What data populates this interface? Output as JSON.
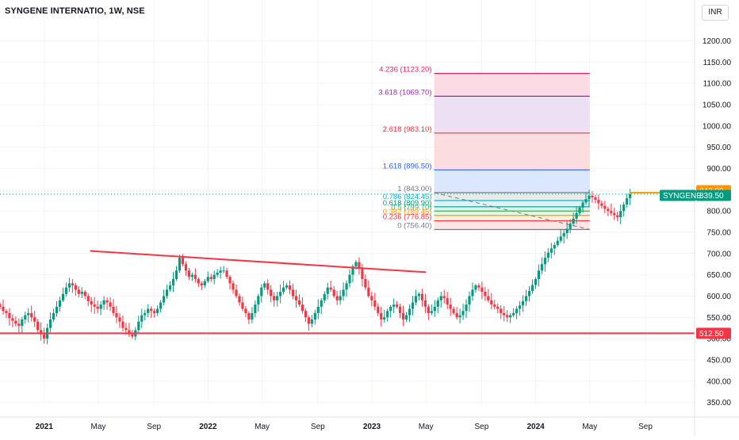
{
  "header": {
    "title": "SYNGENE INTERNATIO, 1W, NSE"
  },
  "currency_button": {
    "label": "INR"
  },
  "chart_data": {
    "type": "candlestick",
    "symbol": "SYNGENE",
    "interval": "1W",
    "exchange": "NSE",
    "currency": "INR",
    "y_axis": {
      "ticks": [
        350,
        400,
        450,
        500,
        550,
        600,
        650,
        700,
        750,
        800,
        850,
        900,
        950,
        1000,
        1050,
        1100,
        1150,
        1200
      ],
      "tick_labels": [
        "350.00",
        "400.00",
        "450.00",
        "500.00",
        "550.00",
        "600.00",
        "650.00",
        "700.00",
        "750.00",
        "800.00",
        "850.00",
        "900.00",
        "950.00",
        "1000.00",
        "1050.00",
        "1100.00",
        "1150.00",
        "1200.00"
      ],
      "range": [
        340,
        1225
      ]
    },
    "x_axis": {
      "tick_labels": [
        {
          "label": "2021",
          "bold": true,
          "t": 2021.0
        },
        {
          "label": "May",
          "bold": false,
          "t": 2021.33
        },
        {
          "label": "Sep",
          "bold": false,
          "t": 2021.67
        },
        {
          "label": "2022",
          "bold": true,
          "t": 2022.0
        },
        {
          "label": "May",
          "bold": false,
          "t": 2022.33
        },
        {
          "label": "Sep",
          "bold": false,
          "t": 2022.67
        },
        {
          "label": "2023",
          "bold": true,
          "t": 2023.0
        },
        {
          "label": "May",
          "bold": false,
          "t": 2023.33
        },
        {
          "label": "Sep",
          "bold": false,
          "t": 2023.67
        },
        {
          "label": "2024",
          "bold": true,
          "t": 2024.0
        },
        {
          "label": "May",
          "bold": false,
          "t": 2024.33
        },
        {
          "label": "Sep",
          "bold": false,
          "t": 2024.67
        }
      ],
      "range": [
        2020.73,
        2024.97
      ]
    },
    "closes": [
      575,
      565,
      560,
      548,
      542,
      535,
      530,
      545,
      555,
      560,
      550,
      540,
      520,
      510,
      500,
      525,
      545,
      560,
      575,
      590,
      605,
      620,
      630,
      625,
      615,
      605,
      610,
      600,
      588,
      580,
      575,
      570,
      580,
      590,
      585,
      575,
      560,
      550,
      540,
      525,
      520,
      510,
      505,
      520,
      540,
      555,
      560,
      570,
      565,
      560,
      570,
      585,
      600,
      615,
      625,
      640,
      660,
      690,
      675,
      660,
      645,
      650,
      640,
      630,
      625,
      635,
      645,
      640,
      650,
      655,
      660,
      660,
      645,
      630,
      615,
      600,
      585,
      570,
      560,
      545,
      560,
      580,
      600,
      620,
      630,
      615,
      600,
      590,
      600,
      610,
      620,
      625,
      615,
      600,
      590,
      580,
      565,
      550,
      535,
      545,
      560,
      575,
      590,
      605,
      620,
      615,
      600,
      590,
      600,
      615,
      630,
      650,
      670,
      680,
      665,
      640,
      620,
      600,
      590,
      575,
      560,
      545,
      550,
      565,
      575,
      580,
      575,
      560,
      545,
      555,
      570,
      585,
      600,
      605,
      590,
      575,
      560,
      565,
      575,
      590,
      600,
      595,
      580,
      570,
      560,
      550,
      555,
      565,
      580,
      600,
      615,
      625,
      620,
      610,
      600,
      590,
      580,
      575,
      570,
      560,
      555,
      550,
      555,
      560,
      570,
      578,
      588,
      600,
      612,
      626,
      640,
      660,
      675,
      690,
      702,
      712,
      720,
      730,
      740,
      748,
      758,
      770,
      782,
      795,
      808,
      820,
      828,
      836,
      832,
      826,
      818,
      812,
      805,
      800,
      795,
      790,
      785,
      800,
      815,
      830,
      839.5
    ],
    "start_t": 2020.73,
    "last_price": 839.5,
    "last_price_label": "839.50",
    "symbol_label": "SYNGENE",
    "orange_tag": {
      "value": 842.8,
      "label": "842.80"
    },
    "support_line": {
      "value": 512.5,
      "label": "512.50",
      "color": "#f23645"
    },
    "resistance_trendline": {
      "start": {
        "t": 2021.28,
        "value": 706
      },
      "end": {
        "t": 2023.33,
        "value": 656
      },
      "color": "#f23645"
    },
    "fibonacci_extension": {
      "t_start": 2023.38,
      "t_end": 2024.33,
      "levels": [
        {
          "ratio": 0,
          "value": 756.4,
          "label": "0 (756.40)",
          "color": "#787b86",
          "fill": "#e0e0e0"
        },
        {
          "ratio": 0.236,
          "value": 776.85,
          "label": "0.236 (776.85)",
          "color": "#f23645",
          "fill": "#fde2e3"
        },
        {
          "ratio": 0.382,
          "value": 789.45,
          "label": "0.382 (789.45)",
          "color": "#ff9800",
          "fill": "#fff1d9"
        },
        {
          "ratio": 0.5,
          "value": 799.7,
          "label": "0.5 (799.70)",
          "color": "#4caf50",
          "fill": "#e3f4e4"
        },
        {
          "ratio": 0.618,
          "value": 809.9,
          "label": "0.618 (809.90)",
          "color": "#089981",
          "fill": "#d8f0ec"
        },
        {
          "ratio": 0.786,
          "value": 824.45,
          "label": "0.786 (824.45)",
          "color": "#00bcd4",
          "fill": "#d8f3f7"
        },
        {
          "ratio": 1,
          "value": 843.0,
          "label": "1 (843.00)",
          "color": "#787b86",
          "fill": "#e8e8ea"
        },
        {
          "ratio": 1.618,
          "value": 896.5,
          "label": "1.618 (896.50)",
          "color": "#2962ff",
          "fill": "#d6e4fd"
        },
        {
          "ratio": 2.618,
          "value": 983.1,
          "label": "2.618 (983.10)",
          "color": "#f23645",
          "fill": "#fcd9dc"
        },
        {
          "ratio": 3.618,
          "value": 1069.7,
          "label": "3.618 (1069.70)",
          "color": "#9c27b0",
          "fill": "#ebdcf3"
        },
        {
          "ratio": 4.236,
          "value": 1123.2,
          "label": "4.236 (1123.20)",
          "color": "#e91e63",
          "fill": "#fbd8e1"
        }
      ]
    },
    "colors": {
      "up": "#089981",
      "down": "#f23645",
      "grid": "#f0f3fa",
      "axis_text": "#131722"
    }
  }
}
